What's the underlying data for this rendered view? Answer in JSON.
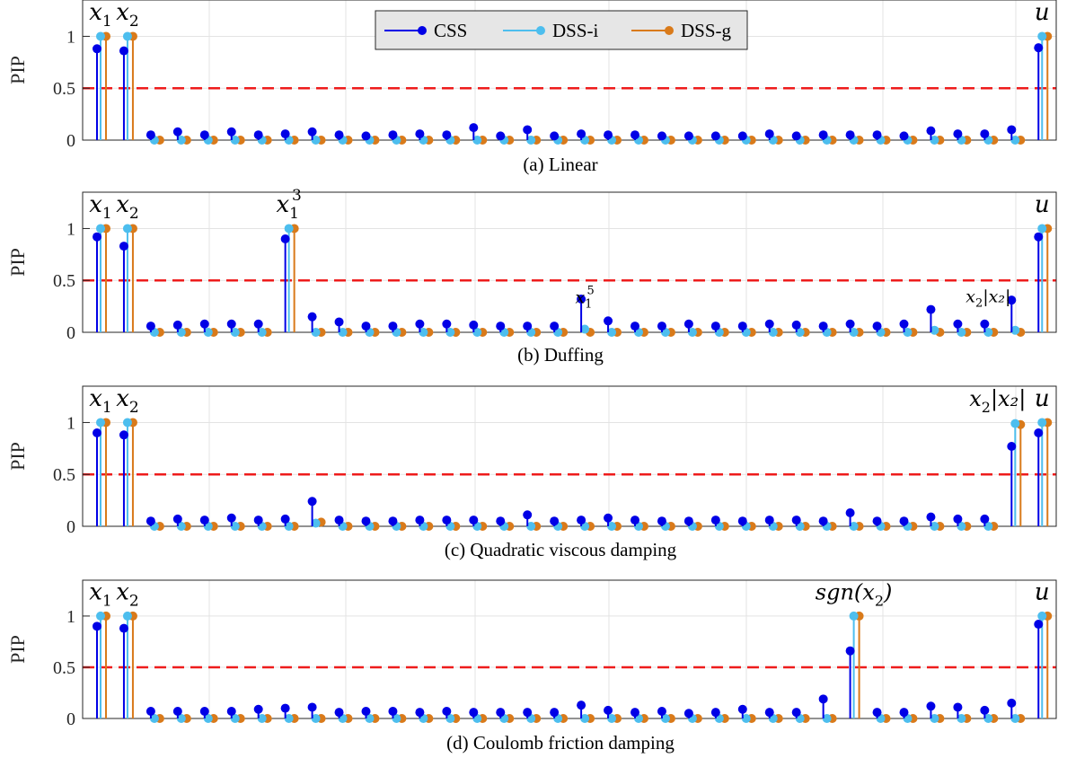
{
  "colors": {
    "CSS": "#0000e6",
    "DSS-i": "#4dbeee",
    "DSS-g": "#d97a1a",
    "threshold": "#ee1c1c",
    "grid": "#e3e3e3",
    "axis": "#262626",
    "legend_bg": "#e6e6e6"
  },
  "legend": [
    {
      "name": "CSS",
      "color": "#0000e6"
    },
    {
      "name": "DSS-i",
      "color": "#4dbeee"
    },
    {
      "name": "DSS-g",
      "color": "#d97a1a"
    }
  ],
  "chart_data": [
    {
      "type": "stem",
      "caption": "(a) Linear",
      "ylabel": "PIP",
      "ylim": [
        0,
        1.35
      ],
      "yticks": [
        "0",
        "0.5",
        "1"
      ],
      "threshold": 0.5,
      "grid": true,
      "legend_position": "top-center",
      "n_terms": 36,
      "series": [
        {
          "name": "CSS",
          "values": [
            0.88,
            0.86,
            0.05,
            0.08,
            0.05,
            0.08,
            0.05,
            0.06,
            0.08,
            0.05,
            0.04,
            0.05,
            0.06,
            0.05,
            0.12,
            0.04,
            0.1,
            0.04,
            0.06,
            0.05,
            0.05,
            0.04,
            0.04,
            0.04,
            0.04,
            0.06,
            0.04,
            0.05,
            0.05,
            0.05,
            0.04,
            0.09,
            0.06,
            0.06,
            0.1,
            0.89
          ]
        },
        {
          "name": "DSS-i",
          "values": [
            1,
            1,
            0,
            0,
            0,
            0,
            0,
            0,
            0,
            0,
            0,
            0,
            0,
            0,
            0,
            0,
            0,
            0,
            0,
            0,
            0,
            0,
            0,
            0,
            0,
            0,
            0,
            0,
            0,
            0,
            0,
            0,
            0,
            0,
            0,
            1
          ]
        },
        {
          "name": "DSS-g",
          "values": [
            1,
            1,
            0,
            0,
            0,
            0,
            0,
            0,
            0,
            0,
            0,
            0,
            0,
            0,
            0,
            0,
            0,
            0,
            0,
            0,
            0,
            0,
            0,
            0,
            0,
            0,
            0,
            0,
            0,
            0,
            0,
            0,
            0,
            0,
            0,
            1
          ]
        }
      ],
      "annotations": [
        {
          "index": 0,
          "y": 1.16,
          "base": "x",
          "sub": "1",
          "sup": "",
          "rest": "",
          "size": 26
        },
        {
          "index": 1,
          "y": 1.16,
          "base": "x",
          "sub": "2",
          "sup": "",
          "rest": "",
          "size": 26
        },
        {
          "index": 35,
          "y": 1.16,
          "base": "u",
          "sub": "",
          "sup": "",
          "rest": "",
          "size": 26
        }
      ]
    },
    {
      "type": "stem",
      "caption": "(b) Duffing",
      "ylabel": "PIP",
      "ylim": [
        0,
        1.35
      ],
      "yticks": [
        "0",
        "0.5",
        "1"
      ],
      "threshold": 0.5,
      "grid": true,
      "n_terms": 36,
      "series": [
        {
          "name": "CSS",
          "values": [
            0.92,
            0.83,
            0.06,
            0.07,
            0.08,
            0.08,
            0.08,
            0.9,
            0.15,
            0.1,
            0.06,
            0.06,
            0.08,
            0.08,
            0.07,
            0.06,
            0.06,
            0.06,
            0.32,
            0.11,
            0.06,
            0.06,
            0.08,
            0.06,
            0.06,
            0.08,
            0.07,
            0.06,
            0.08,
            0.06,
            0.08,
            0.22,
            0.08,
            0.08,
            0.31,
            0.92
          ]
        },
        {
          "name": "DSS-i",
          "values": [
            1,
            1,
            0,
            0,
            0,
            0,
            0,
            1,
            0,
            0,
            0,
            0,
            0,
            0,
            0,
            0,
            0,
            0,
            0.03,
            0,
            0,
            0,
            0,
            0,
            0,
            0,
            0,
            0,
            0,
            0,
            0,
            0.02,
            0,
            0,
            0.02,
            1
          ]
        },
        {
          "name": "DSS-g",
          "values": [
            1,
            1,
            0,
            0,
            0,
            0,
            0,
            1,
            0,
            0,
            0,
            0,
            0,
            0,
            0,
            0,
            0,
            0,
            0,
            0,
            0,
            0,
            0,
            0,
            0,
            0,
            0,
            0,
            0,
            0,
            0,
            0,
            0,
            0,
            0,
            1
          ]
        }
      ],
      "annotations": [
        {
          "index": 0,
          "y": 1.16,
          "base": "x",
          "sub": "1",
          "sup": "",
          "rest": "",
          "size": 26
        },
        {
          "index": 1,
          "y": 1.16,
          "base": "x",
          "sub": "2",
          "sup": "",
          "rest": "",
          "size": 26
        },
        {
          "index": 7,
          "y": 1.16,
          "base": "x",
          "sub": "1",
          "sup": "3",
          "rest": "",
          "size": 26
        },
        {
          "index": 18,
          "y": 0.28,
          "base": "x",
          "sub": "1",
          "sup": "5",
          "rest": "",
          "size": 19
        },
        {
          "index": 33,
          "y": 0.29,
          "base": "x",
          "sub": "2",
          "sup": "",
          "rest": "|x₂|",
          "size": 19
        },
        {
          "index": 35,
          "y": 1.16,
          "base": "u",
          "sub": "",
          "sup": "",
          "rest": "",
          "size": 26
        }
      ]
    },
    {
      "type": "stem",
      "caption": "(c) Quadratic viscous damping",
      "ylabel": "PIP",
      "ylim": [
        0,
        1.35
      ],
      "yticks": [
        "0",
        "0.5",
        "1"
      ],
      "threshold": 0.5,
      "grid": true,
      "n_terms": 36,
      "series": [
        {
          "name": "CSS",
          "values": [
            0.9,
            0.88,
            0.05,
            0.07,
            0.06,
            0.08,
            0.06,
            0.07,
            0.24,
            0.06,
            0.05,
            0.05,
            0.06,
            0.06,
            0.06,
            0.05,
            0.11,
            0.05,
            0.06,
            0.08,
            0.06,
            0.05,
            0.05,
            0.06,
            0.05,
            0.06,
            0.06,
            0.05,
            0.13,
            0.05,
            0.05,
            0.09,
            0.07,
            0.07,
            0.77,
            0.9
          ]
        },
        {
          "name": "DSS-i",
          "values": [
            1,
            1,
            0,
            0,
            0,
            0,
            0,
            0,
            0.03,
            0,
            0,
            0,
            0,
            0,
            0,
            0,
            0,
            0,
            0,
            0,
            0,
            0,
            0,
            0,
            0,
            0,
            0,
            0,
            0,
            0,
            0,
            0,
            0,
            0,
            0.99,
            1
          ]
        },
        {
          "name": "DSS-g",
          "values": [
            1,
            1,
            0,
            0,
            0,
            0,
            0,
            0,
            0.04,
            0,
            0,
            0,
            0,
            0,
            0,
            0,
            0,
            0,
            0,
            0,
            0,
            0,
            0,
            0,
            0,
            0,
            0,
            0,
            0,
            0,
            0,
            0,
            0,
            0,
            0.98,
            1
          ]
        }
      ],
      "annotations": [
        {
          "index": 0,
          "y": 1.16,
          "base": "x",
          "sub": "1",
          "sup": "",
          "rest": "",
          "size": 26
        },
        {
          "index": 1,
          "y": 1.16,
          "base": "x",
          "sub": "2",
          "sup": "",
          "rest": "",
          "size": 26
        },
        {
          "index": 34,
          "y": 1.16,
          "base": "x",
          "sub": "2",
          "sup": "",
          "rest": "|x₂|",
          "size": 24,
          "anchor": "end",
          "dx": 12
        },
        {
          "index": 35,
          "y": 1.16,
          "base": "u",
          "sub": "",
          "sup": "",
          "rest": "",
          "size": 26
        }
      ]
    },
    {
      "type": "stem",
      "caption": "(d) Coulomb friction damping",
      "ylabel": "PIP",
      "ylim": [
        0,
        1.35
      ],
      "yticks": [
        "0",
        "0.5",
        "1"
      ],
      "threshold": 0.5,
      "grid": true,
      "n_terms": 36,
      "series": [
        {
          "name": "CSS",
          "values": [
            0.9,
            0.88,
            0.07,
            0.07,
            0.07,
            0.07,
            0.09,
            0.1,
            0.11,
            0.06,
            0.07,
            0.07,
            0.06,
            0.07,
            0.06,
            0.06,
            0.06,
            0.06,
            0.13,
            0.08,
            0.06,
            0.07,
            0.05,
            0.06,
            0.09,
            0.06,
            0.06,
            0.19,
            0.66,
            0.06,
            0.06,
            0.12,
            0.11,
            0.08,
            0.15,
            0.92
          ]
        },
        {
          "name": "DSS-i",
          "values": [
            1,
            1,
            0,
            0,
            0,
            0,
            0,
            0,
            0,
            0,
            0,
            0,
            0,
            0,
            0,
            0,
            0,
            0,
            0,
            0,
            0,
            0,
            0,
            0,
            0,
            0,
            0,
            0,
            1,
            0,
            0,
            0,
            0,
            0,
            0,
            1
          ]
        },
        {
          "name": "DSS-g",
          "values": [
            1,
            1,
            0,
            0,
            0,
            0,
            0,
            0,
            0,
            0,
            0,
            0,
            0,
            0,
            0,
            0,
            0,
            0,
            0,
            0,
            0,
            0,
            0,
            0,
            0,
            0,
            0,
            0,
            1,
            0,
            0,
            0,
            0,
            0,
            0,
            1
          ]
        }
      ],
      "annotations": [
        {
          "index": 0,
          "y": 1.16,
          "base": "x",
          "sub": "1",
          "sup": "",
          "rest": "",
          "size": 26
        },
        {
          "index": 1,
          "y": 1.16,
          "base": "x",
          "sub": "2",
          "sup": "",
          "rest": "",
          "size": 26
        },
        {
          "index": 28,
          "y": 1.16,
          "base": "sgn(x",
          "sub": "2",
          "sup": "",
          "rest": ")",
          "size": 24
        },
        {
          "index": 35,
          "y": 1.16,
          "base": "u",
          "sub": "",
          "sup": "",
          "rest": "",
          "size": 26
        }
      ]
    }
  ]
}
